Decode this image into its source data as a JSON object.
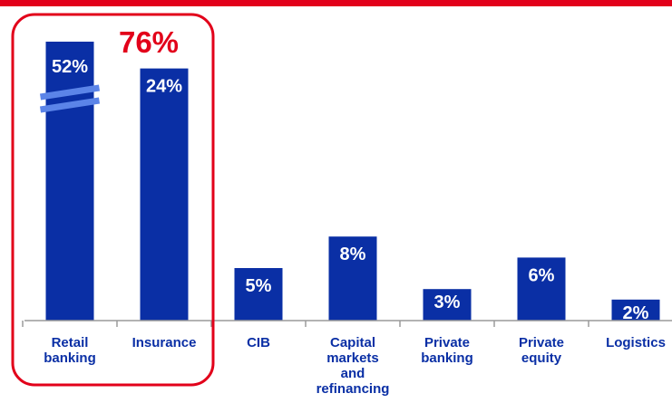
{
  "chart_data": {
    "type": "bar",
    "categories": [
      "Retail\nbanking",
      "Insurance",
      "CIB",
      "Capital\nmarkets\nand\nrefinancing",
      "Private\nbanking",
      "Private\nequity",
      "Logistics"
    ],
    "values": [
      52,
      24,
      5,
      8,
      3,
      6,
      2
    ],
    "data_labels": [
      "52%",
      "24%",
      "5%",
      "8%",
      "3%",
      "6%",
      "2%"
    ],
    "axis_break": "Retail\nbanking",
    "unit": "%",
    "grid": false,
    "legend": "none",
    "highlight": {
      "label": "76%",
      "categories": [
        "Retail\nbanking",
        "Insurance"
      ]
    }
  },
  "colors": {
    "bar": "#0a2fa5",
    "bar_text": "#ffffff",
    "highlight": "#e2001a",
    "axis": "#9a9a9a",
    "category_text": "#0a2fa5",
    "break_mark": "#5b84e8"
  }
}
